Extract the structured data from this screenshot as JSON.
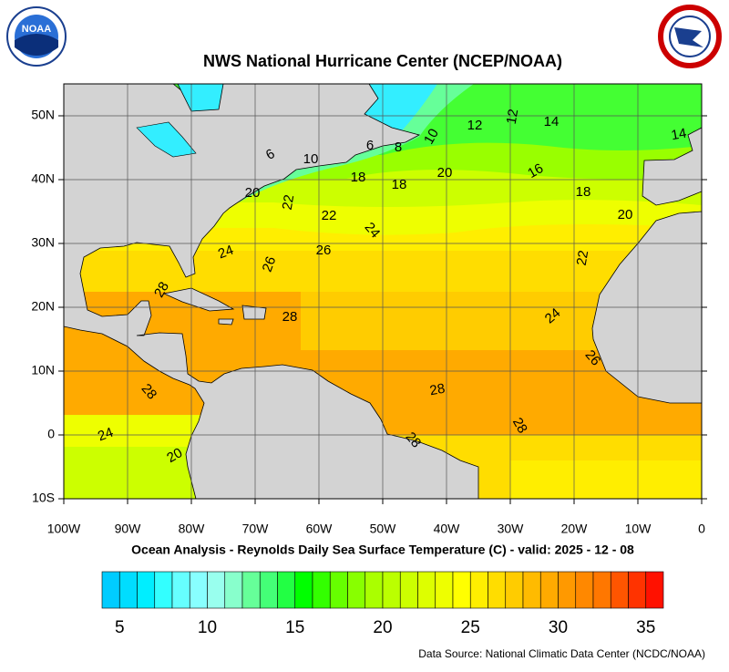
{
  "header": {
    "title": "NWS National Hurricane Center (NCEP/NOAA)",
    "logo": "NOAA"
  },
  "map": {
    "xlim": [
      -100,
      0
    ],
    "ylim": [
      -10,
      55
    ],
    "xticks": [
      {
        "value": -100,
        "label": "100W"
      },
      {
        "value": -90,
        "label": "90W"
      },
      {
        "value": -80,
        "label": "80W"
      },
      {
        "value": -70,
        "label": "70W"
      },
      {
        "value": -60,
        "label": "60W"
      },
      {
        "value": -50,
        "label": "50W"
      },
      {
        "value": -40,
        "label": "40W"
      },
      {
        "value": -30,
        "label": "30W"
      },
      {
        "value": -20,
        "label": "20W"
      },
      {
        "value": -10,
        "label": "10W"
      },
      0
    ],
    "yticks": [
      {
        "value": 50,
        "label": "50N"
      },
      {
        "value": 40,
        "label": "40N"
      },
      {
        "value": 30,
        "label": "30N"
      },
      {
        "value": 20,
        "label": "20N"
      },
      {
        "value": 10,
        "label": "10N"
      },
      0,
      {
        "value": -10,
        "label": "10S"
      }
    ],
    "grid": true,
    "contour_labels": [
      6,
      6,
      8,
      10,
      12,
      12,
      14,
      14,
      10,
      18,
      18,
      20,
      16,
      18,
      20,
      22,
      22,
      24,
      20,
      24,
      26,
      26,
      22,
      28,
      28,
      24,
      26,
      28,
      28,
      28,
      28,
      24,
      20
    ]
  },
  "subtitle": "Ocean Analysis - Reynolds Daily Sea Surface Temperature (C) - valid: 2025 - 12 - 08",
  "colorbar": {
    "lim": [
      4,
      36
    ],
    "ticks": [
      5,
      10,
      15,
      20,
      25,
      30,
      35
    ],
    "colors": [
      "#00ccff",
      "#00ddff",
      "#00eeff",
      "#33ffff",
      "#66ffff",
      "#88ffff",
      "#99ffee",
      "#88ffcc",
      "#66ff99",
      "#44ff77",
      "#22ff44",
      "#00ff00",
      "#33ff00",
      "#66ff00",
      "#88ff00",
      "#aaff00",
      "#bbff00",
      "#ccff00",
      "#ddff00",
      "#eeff00",
      "#ffff00",
      "#ffee00",
      "#ffdd00",
      "#ffcc00",
      "#ffbb00",
      "#ffaa00",
      "#ff9900",
      "#ff8800",
      "#ff7700",
      "#ff5500",
      "#ff3300",
      "#ff1100"
    ]
  },
  "source": "Data Source: National Climatic Data Center (NCDC/NOAA)"
}
